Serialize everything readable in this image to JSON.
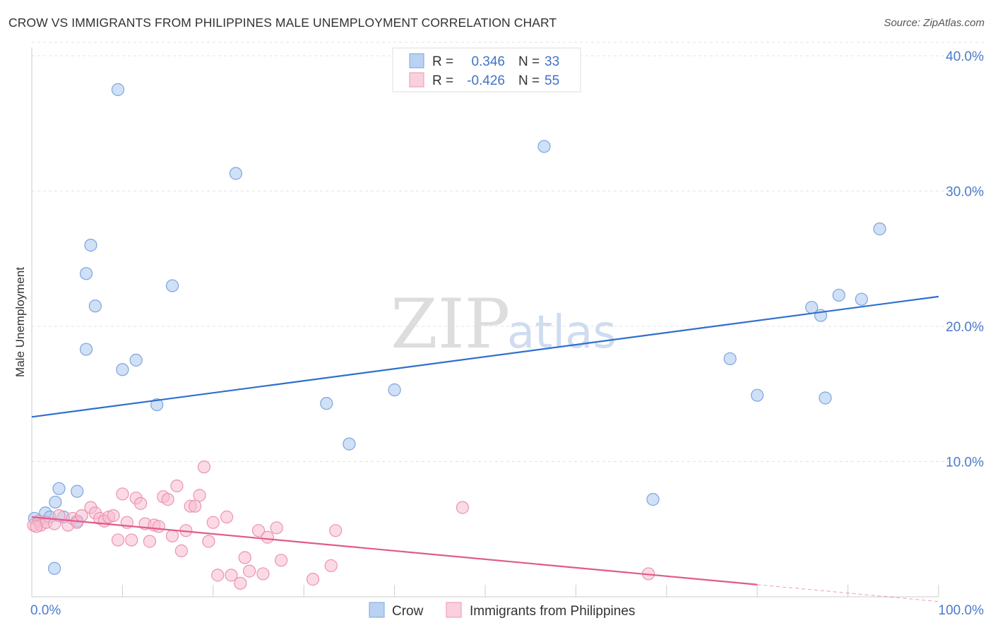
{
  "title": "CROW VS IMMIGRANTS FROM PHILIPPINES MALE UNEMPLOYMENT CORRELATION CHART",
  "source": "Source: ZipAtlas.com",
  "watermark": {
    "zip": "ZIP",
    "atlas": "atlas"
  },
  "legend_top": {
    "rows": [
      {
        "r_label": "R =",
        "r_value": "0.346",
        "n_label": "N =",
        "n_value": "33"
      },
      {
        "r_label": "R =",
        "r_value": "-0.426",
        "n_label": "N =",
        "n_value": "55"
      }
    ]
  },
  "chart_data": {
    "type": "scatter",
    "title": "CROW VS IMMIGRANTS FROM PHILIPPINES MALE UNEMPLOYMENT CORRELATION CHART",
    "xlabel": "",
    "ylabel": "Male Unemployment",
    "xlim": [
      0,
      100
    ],
    "ylim": [
      0,
      41
    ],
    "x_tick_labels": [
      "0.0%",
      "100.0%"
    ],
    "y_ticks": [
      10,
      20,
      30,
      40
    ],
    "y_tick_labels": [
      "10.0%",
      "20.0%",
      "30.0%",
      "40.0%"
    ],
    "grid": true,
    "legend_position": "top-center",
    "series": [
      {
        "name": "Crow",
        "color": "#a9c7ee",
        "edge": "#7aa6dd",
        "line_color": "#2f6fcc",
        "r": 0.346,
        "n": 33,
        "trend": {
          "x": [
            0,
            100
          ],
          "y": [
            13.3,
            22.2
          ]
        },
        "points": [
          [
            0.3,
            5.8
          ],
          [
            0.8,
            5.6
          ],
          [
            1.5,
            6.2
          ],
          [
            2.0,
            5.9
          ],
          [
            2.5,
            2.1
          ],
          [
            2.6,
            7.0
          ],
          [
            3.0,
            8.0
          ],
          [
            3.5,
            5.9
          ],
          [
            5.0,
            7.8
          ],
          [
            5.0,
            5.6
          ],
          [
            6.0,
            18.3
          ],
          [
            6.0,
            23.9
          ],
          [
            6.5,
            26.0
          ],
          [
            7.0,
            21.5
          ],
          [
            9.5,
            37.5
          ],
          [
            10.0,
            16.8
          ],
          [
            11.5,
            17.5
          ],
          [
            13.8,
            14.2
          ],
          [
            15.5,
            23.0
          ],
          [
            22.5,
            31.3
          ],
          [
            32.5,
            14.3
          ],
          [
            35.0,
            11.3
          ],
          [
            40.0,
            15.3
          ],
          [
            56.5,
            33.3
          ],
          [
            68.5,
            7.2
          ],
          [
            77.0,
            17.6
          ],
          [
            80.0,
            14.9
          ],
          [
            86.0,
            21.4
          ],
          [
            87.0,
            20.8
          ],
          [
            87.5,
            14.7
          ],
          [
            89.0,
            22.3
          ],
          [
            91.5,
            22.0
          ],
          [
            93.5,
            27.2
          ]
        ]
      },
      {
        "name": "Immigrants from Philippines",
        "color": "#f7bcd0",
        "edge": "#ec92b1",
        "line_color": "#e05a8c",
        "r": -0.426,
        "n": 55,
        "trend": {
          "x": [
            0,
            80
          ],
          "y": [
            5.9,
            0.9
          ]
        },
        "trend_dashed": {
          "x": [
            80,
            100
          ],
          "y": [
            0.9,
            -0.35
          ]
        },
        "points": [
          [
            0.2,
            5.3
          ],
          [
            0.8,
            5.6
          ],
          [
            1.0,
            5.3
          ],
          [
            1.6,
            5.5
          ],
          [
            2.5,
            5.4
          ],
          [
            3.0,
            6.0
          ],
          [
            4.0,
            5.3
          ],
          [
            4.5,
            5.8
          ],
          [
            5.0,
            5.5
          ],
          [
            5.5,
            6.0
          ],
          [
            6.5,
            6.6
          ],
          [
            7.0,
            6.2
          ],
          [
            7.5,
            5.8
          ],
          [
            8.0,
            5.6
          ],
          [
            8.5,
            5.9
          ],
          [
            9.0,
            6.0
          ],
          [
            9.5,
            4.2
          ],
          [
            10.0,
            7.6
          ],
          [
            10.5,
            5.5
          ],
          [
            11.0,
            4.2
          ],
          [
            11.5,
            7.3
          ],
          [
            12.0,
            6.9
          ],
          [
            12.5,
            5.4
          ],
          [
            13.0,
            4.1
          ],
          [
            13.5,
            5.3
          ],
          [
            14.0,
            5.2
          ],
          [
            14.5,
            7.4
          ],
          [
            15.0,
            7.2
          ],
          [
            15.5,
            4.5
          ],
          [
            16.0,
            8.2
          ],
          [
            16.5,
            3.4
          ],
          [
            17.0,
            4.9
          ],
          [
            17.5,
            6.7
          ],
          [
            18.0,
            6.7
          ],
          [
            18.5,
            7.5
          ],
          [
            19.0,
            9.6
          ],
          [
            19.5,
            4.1
          ],
          [
            20.0,
            5.5
          ],
          [
            20.5,
            1.6
          ],
          [
            21.5,
            5.9
          ],
          [
            22.0,
            1.6
          ],
          [
            23.0,
            1.0
          ],
          [
            23.5,
            2.9
          ],
          [
            24.0,
            1.9
          ],
          [
            25.0,
            4.9
          ],
          [
            25.5,
            1.7
          ],
          [
            26.0,
            4.4
          ],
          [
            27.0,
            5.1
          ],
          [
            27.5,
            2.7
          ],
          [
            31.0,
            1.3
          ],
          [
            33.0,
            2.3
          ],
          [
            33.5,
            4.9
          ],
          [
            47.5,
            6.6
          ],
          [
            68.0,
            1.7
          ],
          [
            0.5,
            5.2
          ]
        ]
      }
    ]
  }
}
